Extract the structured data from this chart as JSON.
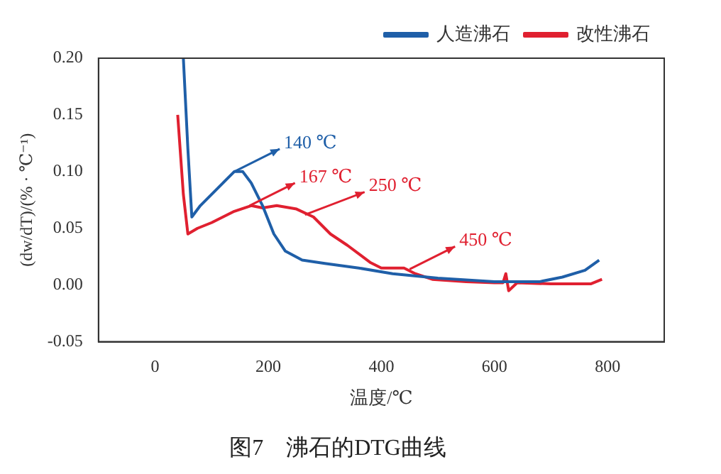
{
  "chart_data": {
    "type": "line",
    "title": "图7　沸石的DTG曲线",
    "xlabel": "温度/℃",
    "ylabel": "(dw/dT)/(% · ℃⁻¹)",
    "xlim": [
      -100,
      900
    ],
    "xticks": [
      0,
      200,
      400,
      600,
      800
    ],
    "ylim": [
      -0.05,
      0.2
    ],
    "yticks": [
      {
        "value": -0.05,
        "label": "-0.05"
      },
      {
        "value": 0,
        "label": "0.00"
      },
      {
        "value": 0.05,
        "label": "0.05"
      },
      {
        "value": 0.1,
        "label": "0.10"
      },
      {
        "value": 0.15,
        "label": "0.15"
      },
      {
        "value": 0.2,
        "label": "0.20"
      }
    ],
    "grid": false,
    "legend": "top right",
    "marker": "none",
    "line_style": "solid",
    "series": [
      {
        "name": "人造沸石",
        "color": "#1f5fa8",
        "x": [
          50,
          58,
          65,
          80,
          100,
          120,
          140,
          155,
          170,
          190,
          210,
          230,
          260,
          300,
          360,
          420,
          500,
          600,
          680,
          720,
          760,
          785
        ],
        "values": [
          0.2,
          0.12,
          0.06,
          0.07,
          0.08,
          0.09,
          0.1,
          0.1,
          0.09,
          0.07,
          0.045,
          0.03,
          0.022,
          0.019,
          0.015,
          0.01,
          0.006,
          0.003,
          0.003,
          0.007,
          0.013,
          0.022
        ]
      },
      {
        "name": "改性沸石",
        "color": "#e02030",
        "x": [
          40,
          50,
          58,
          75,
          100,
          140,
          170,
          190,
          215,
          250,
          280,
          310,
          340,
          380,
          400,
          440,
          460,
          490,
          550,
          600,
          615,
          620,
          625,
          640,
          700,
          770,
          790
        ],
        "values": [
          0.15,
          0.08,
          0.045,
          0.05,
          0.055,
          0.065,
          0.07,
          0.068,
          0.07,
          0.067,
          0.06,
          0.045,
          0.035,
          0.02,
          0.015,
          0.015,
          0.01,
          0.005,
          0.003,
          0.002,
          0.002,
          0.01,
          -0.005,
          0.002,
          0.001,
          0.001,
          0.005
        ]
      }
    ],
    "annotations": [
      {
        "text": "140 ℃",
        "x": 140,
        "y": 0.1
      },
      {
        "text": "167 ℃",
        "x": 167,
        "y": 0.07
      },
      {
        "text": "250 ℃",
        "x": 265,
        "y": 0.062
      },
      {
        "text": "450 ℃",
        "x": 450,
        "y": 0.014
      }
    ]
  }
}
